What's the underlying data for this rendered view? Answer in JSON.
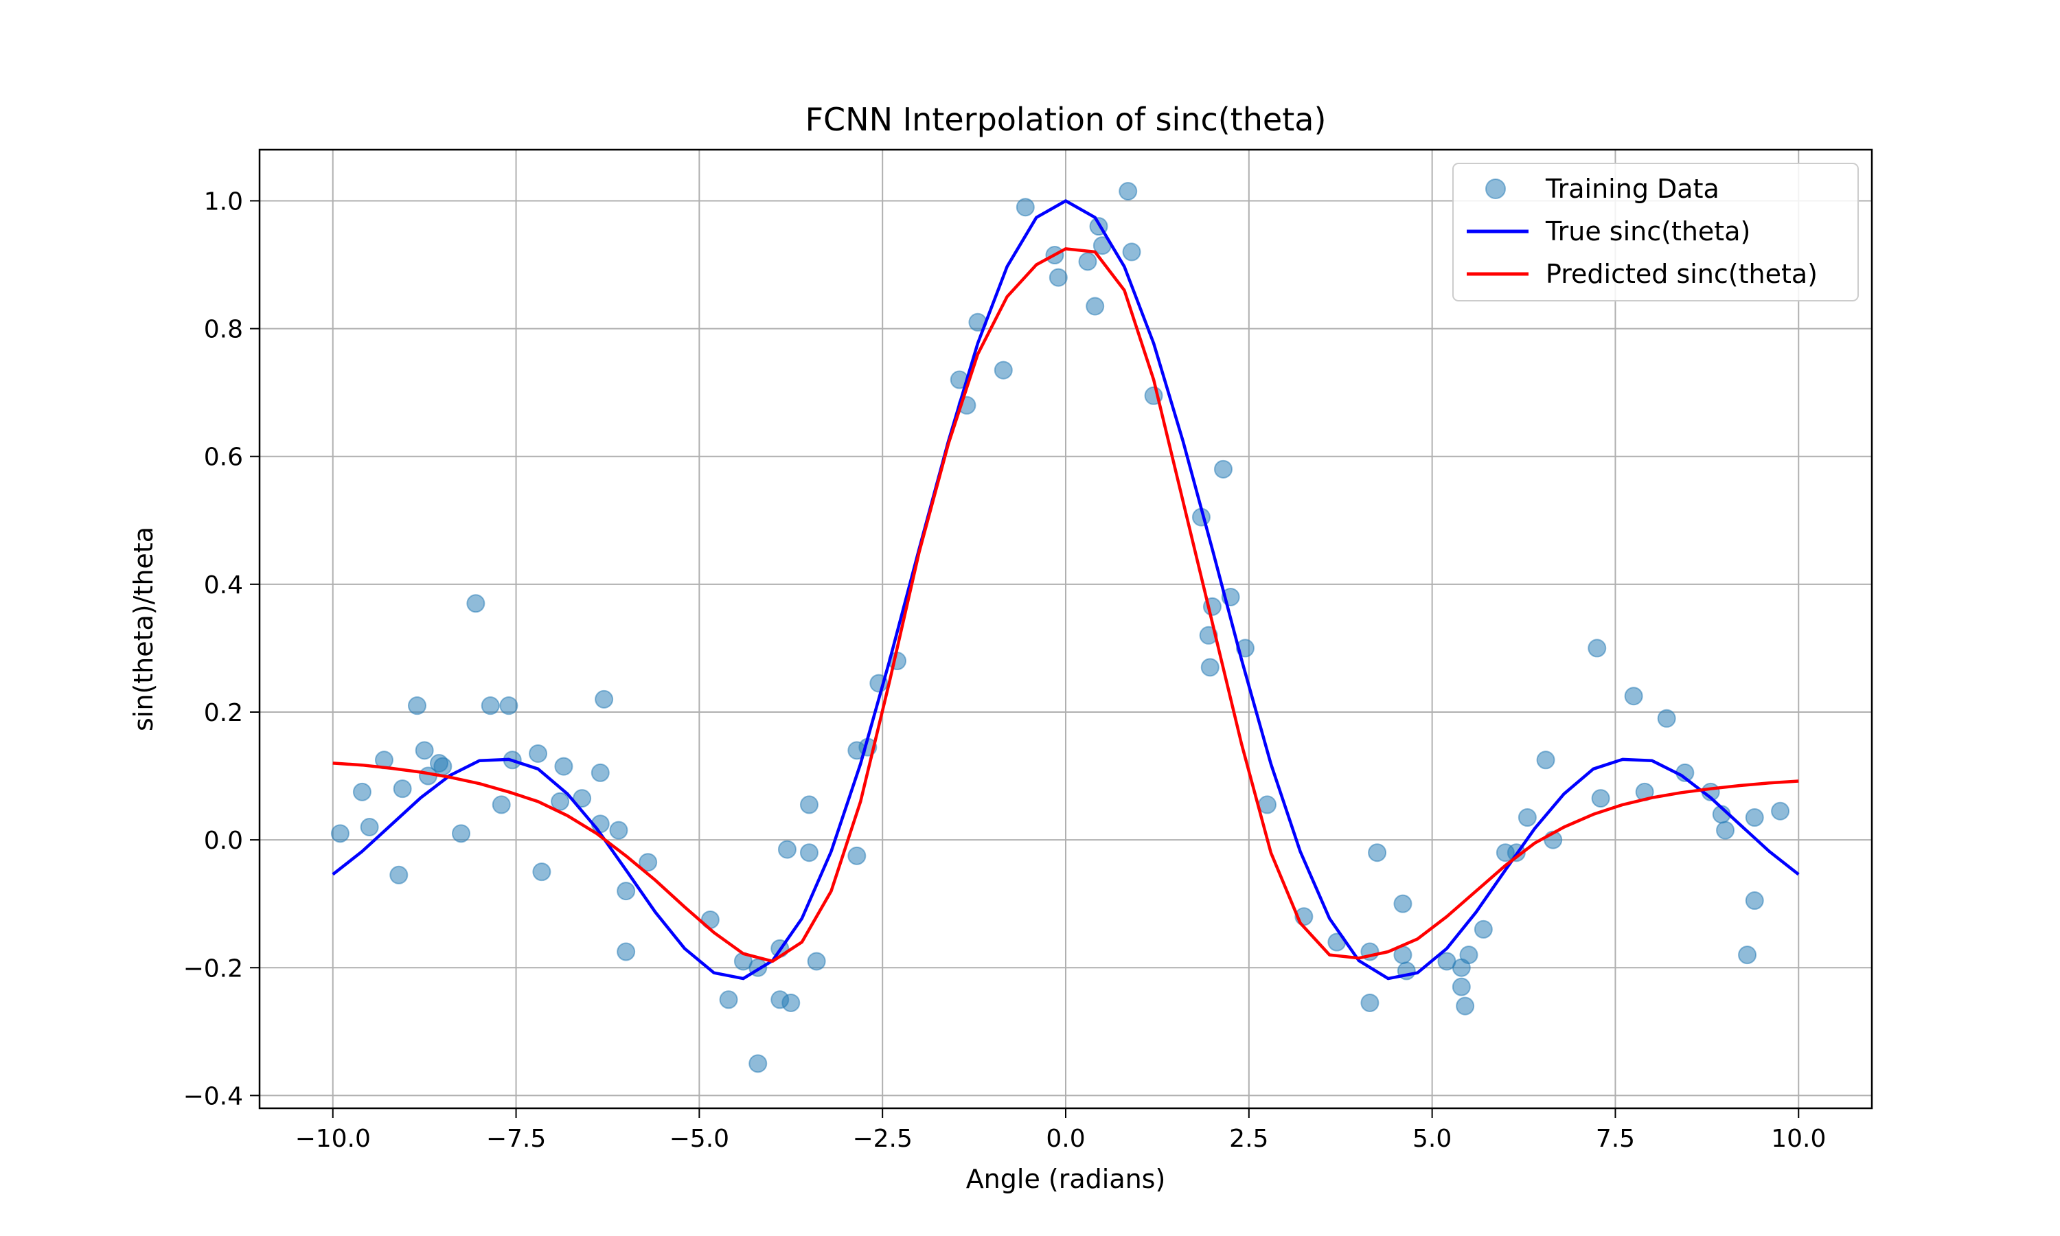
{
  "chart_data": {
    "type": "scatter",
    "title": "FCNN Interpolation of sinc(theta)",
    "xlabel": "Angle (radians)",
    "ylabel": "sin(theta)/theta",
    "xlim": [
      -11.0,
      11.0
    ],
    "ylim": [
      -0.42,
      1.08
    ],
    "grid": true,
    "legend_position": "top-right",
    "x_ticks": [
      -10.0,
      -7.5,
      -5.0,
      -2.5,
      0.0,
      2.5,
      5.0,
      7.5,
      10.0
    ],
    "x_tick_labels": [
      "−10.0",
      "−7.5",
      "−5.0",
      "−2.5",
      "0.0",
      "2.5",
      "5.0",
      "7.5",
      "10.0"
    ],
    "y_ticks": [
      -0.4,
      -0.2,
      0.0,
      0.2,
      0.4,
      0.6,
      0.8,
      1.0
    ],
    "y_tick_labels": [
      "−0.4",
      "−0.2",
      "0.0",
      "0.2",
      "0.4",
      "0.6",
      "0.8",
      "1.0"
    ],
    "series": [
      {
        "name": "Training Data",
        "kind": "scatter",
        "color": "#1f77b4",
        "opacity": 0.5,
        "points": [
          [
            -9.9,
            0.01
          ],
          [
            -9.6,
            0.075
          ],
          [
            -9.5,
            0.02
          ],
          [
            -9.3,
            0.125
          ],
          [
            -9.1,
            -0.055
          ],
          [
            -9.05,
            0.08
          ],
          [
            -8.85,
            0.21
          ],
          [
            -8.75,
            0.14
          ],
          [
            -8.7,
            0.1
          ],
          [
            -8.55,
            0.12
          ],
          [
            -8.5,
            0.115
          ],
          [
            -8.25,
            0.01
          ],
          [
            -8.05,
            0.37
          ],
          [
            -7.85,
            0.21
          ],
          [
            -7.7,
            0.055
          ],
          [
            -7.6,
            0.21
          ],
          [
            -7.55,
            0.125
          ],
          [
            -7.2,
            0.135
          ],
          [
            -7.15,
            -0.05
          ],
          [
            -6.9,
            0.06
          ],
          [
            -6.85,
            0.115
          ],
          [
            -6.6,
            0.065
          ],
          [
            -6.35,
            0.025
          ],
          [
            -6.35,
            0.105
          ],
          [
            -6.3,
            0.22
          ],
          [
            -6.1,
            0.015
          ],
          [
            -6.0,
            -0.08
          ],
          [
            -6.0,
            -0.175
          ],
          [
            -5.7,
            -0.035
          ],
          [
            -4.85,
            -0.125
          ],
          [
            -4.6,
            -0.25
          ],
          [
            -4.4,
            -0.19
          ],
          [
            -4.2,
            -0.2
          ],
          [
            -4.2,
            -0.35
          ],
          [
            -3.9,
            -0.17
          ],
          [
            -3.9,
            -0.25
          ],
          [
            -3.8,
            -0.015
          ],
          [
            -3.75,
            -0.255
          ],
          [
            -3.5,
            -0.02
          ],
          [
            -3.5,
            0.055
          ],
          [
            -3.4,
            -0.19
          ],
          [
            -2.85,
            -0.025
          ],
          [
            -2.85,
            0.14
          ],
          [
            -2.7,
            0.145
          ],
          [
            -2.55,
            0.245
          ],
          [
            -2.3,
            0.28
          ],
          [
            -1.45,
            0.72
          ],
          [
            -1.35,
            0.68
          ],
          [
            -1.2,
            0.81
          ],
          [
            -0.85,
            0.735
          ],
          [
            -0.55,
            0.99
          ],
          [
            -0.15,
            0.915
          ],
          [
            -0.1,
            0.88
          ],
          [
            0.3,
            0.905
          ],
          [
            0.4,
            0.835
          ],
          [
            0.45,
            0.96
          ],
          [
            0.5,
            0.93
          ],
          [
            0.85,
            1.015
          ],
          [
            0.9,
            0.92
          ],
          [
            1.2,
            0.695
          ],
          [
            1.85,
            0.505
          ],
          [
            1.95,
            0.32
          ],
          [
            1.97,
            0.27
          ],
          [
            2.0,
            0.365
          ],
          [
            2.15,
            0.58
          ],
          [
            2.25,
            0.38
          ],
          [
            2.45,
            0.3
          ],
          [
            2.75,
            0.055
          ],
          [
            3.25,
            -0.12
          ],
          [
            3.7,
            -0.16
          ],
          [
            4.15,
            -0.175
          ],
          [
            4.15,
            -0.255
          ],
          [
            4.25,
            -0.02
          ],
          [
            4.6,
            -0.1
          ],
          [
            4.6,
            -0.18
          ],
          [
            4.65,
            -0.205
          ],
          [
            5.2,
            -0.19
          ],
          [
            5.4,
            -0.2
          ],
          [
            5.4,
            -0.23
          ],
          [
            5.45,
            -0.26
          ],
          [
            5.5,
            -0.18
          ],
          [
            5.7,
            -0.14
          ],
          [
            6.0,
            -0.02
          ],
          [
            6.15,
            -0.02
          ],
          [
            6.3,
            0.035
          ],
          [
            6.55,
            0.125
          ],
          [
            6.65,
            0.0
          ],
          [
            7.25,
            0.3
          ],
          [
            7.3,
            0.065
          ],
          [
            7.75,
            0.225
          ],
          [
            7.9,
            0.075
          ],
          [
            8.2,
            0.19
          ],
          [
            8.45,
            0.105
          ],
          [
            8.8,
            0.075
          ],
          [
            8.95,
            0.04
          ],
          [
            9.0,
            0.015
          ],
          [
            9.3,
            -0.18
          ],
          [
            9.4,
            -0.095
          ],
          [
            9.4,
            0.035
          ],
          [
            9.75,
            0.045
          ]
        ]
      },
      {
        "name": "True sinc(theta)",
        "kind": "line",
        "color": "#0000ff",
        "x": [
          -10.0,
          -9.6,
          -9.2,
          -8.8,
          -8.4,
          -8.0,
          -7.6,
          -7.2,
          -6.8,
          -6.4,
          -6.0,
          -5.6,
          -5.2,
          -4.8,
          -4.4,
          -4.0,
          -3.6,
          -3.2,
          -2.8,
          -2.4,
          -2.0,
          -1.6,
          -1.2,
          -0.8,
          -0.4,
          0.0,
          0.4,
          0.8,
          1.2,
          1.6,
          2.0,
          2.4,
          2.8,
          3.2,
          3.6,
          4.0,
          4.4,
          4.8,
          5.2,
          5.6,
          6.0,
          6.4,
          6.8,
          7.2,
          7.6,
          8.0,
          8.4,
          8.8,
          9.2,
          9.6,
          10.0
        ],
        "values": [
          -0.054,
          -0.018,
          0.024,
          0.066,
          0.101,
          0.124,
          0.126,
          0.111,
          0.072,
          0.018,
          -0.047,
          -0.113,
          -0.17,
          -0.208,
          -0.217,
          -0.189,
          -0.123,
          -0.018,
          0.119,
          0.282,
          0.455,
          0.624,
          0.777,
          0.897,
          0.974,
          1.0,
          0.974,
          0.897,
          0.777,
          0.624,
          0.455,
          0.282,
          0.119,
          -0.018,
          -0.123,
          -0.189,
          -0.217,
          -0.208,
          -0.17,
          -0.113,
          -0.047,
          0.018,
          0.072,
          0.111,
          0.126,
          0.124,
          0.101,
          0.066,
          0.024,
          -0.018,
          -0.054
        ]
      },
      {
        "name": "Predicted sinc(theta)",
        "kind": "line",
        "color": "#ff0000",
        "x": [
          -10.0,
          -9.6,
          -9.2,
          -8.8,
          -8.4,
          -8.0,
          -7.6,
          -7.2,
          -6.8,
          -6.4,
          -6.0,
          -5.6,
          -5.2,
          -4.8,
          -4.4,
          -4.0,
          -3.6,
          -3.2,
          -2.8,
          -2.4,
          -2.0,
          -1.6,
          -1.2,
          -0.8,
          -0.4,
          0.0,
          0.4,
          0.8,
          1.2,
          1.6,
          2.0,
          2.4,
          2.8,
          3.2,
          3.6,
          4.0,
          4.4,
          4.8,
          5.2,
          5.6,
          6.0,
          6.4,
          6.8,
          7.2,
          7.6,
          8.0,
          8.4,
          8.8,
          9.2,
          9.6,
          10.0
        ],
        "values": [
          0.12,
          0.117,
          0.112,
          0.106,
          0.098,
          0.088,
          0.075,
          0.06,
          0.038,
          0.01,
          -0.025,
          -0.063,
          -0.105,
          -0.145,
          -0.178,
          -0.19,
          -0.16,
          -0.08,
          0.06,
          0.25,
          0.45,
          0.62,
          0.76,
          0.85,
          0.9,
          0.925,
          0.92,
          0.86,
          0.72,
          0.53,
          0.34,
          0.15,
          -0.02,
          -0.13,
          -0.18,
          -0.185,
          -0.175,
          -0.155,
          -0.12,
          -0.08,
          -0.04,
          -0.005,
          0.02,
          0.04,
          0.055,
          0.066,
          0.074,
          0.08,
          0.085,
          0.089,
          0.092
        ]
      }
    ]
  }
}
